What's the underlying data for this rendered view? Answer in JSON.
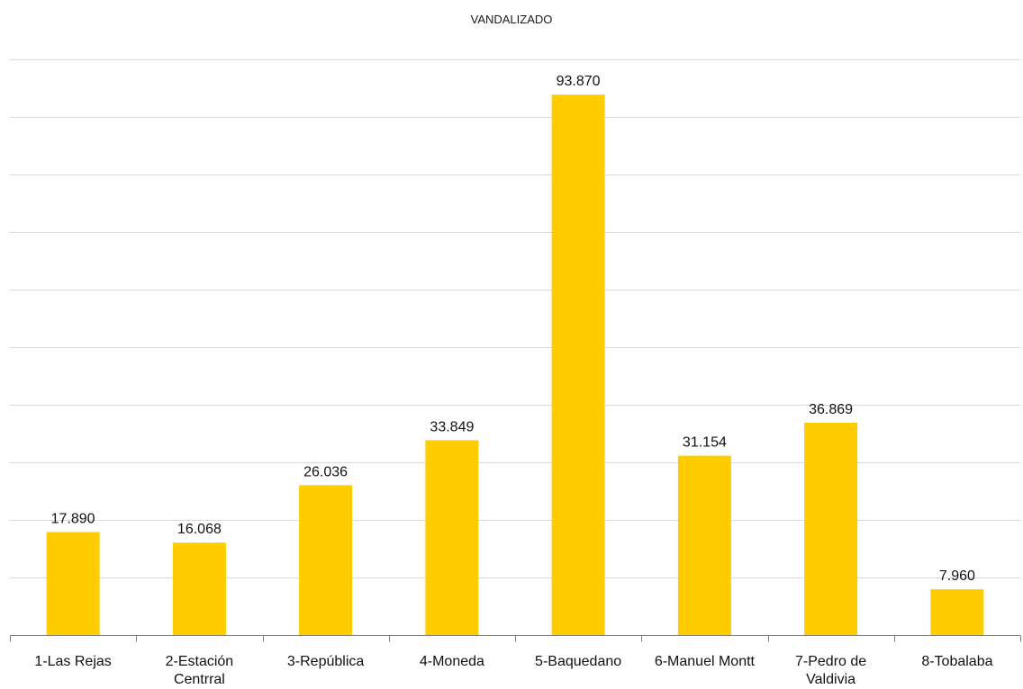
{
  "chart_data": {
    "type": "bar",
    "title": "VANDALIZADO",
    "xlabel": "",
    "ylabel": "",
    "categories": [
      "1-Las Rejas",
      "2-Estación Centrral",
      "3-República",
      "4-Moneda",
      "5-Baquedano",
      "6-Manuel Montt",
      "7-Pedro de Valdivia",
      "8-Tobalaba"
    ],
    "category_lines": [
      [
        "1-Las Rejas"
      ],
      [
        "2-Estación",
        "Centrral"
      ],
      [
        "3-República"
      ],
      [
        "4-Moneda"
      ],
      [
        "5-Baquedano"
      ],
      [
        "6-Manuel Montt"
      ],
      [
        "7-Pedro de",
        "Valdivia"
      ],
      [
        "8-Tobalaba"
      ]
    ],
    "values": [
      17890,
      16068,
      26036,
      33849,
      93870,
      31154,
      36869,
      7960
    ],
    "data_labels": [
      "17.890",
      "16.068",
      "26.036",
      "33.849",
      "93.870",
      "31.154",
      "36.869",
      "7.960"
    ],
    "ylim": [
      0,
      100000
    ],
    "y_gridline_step": 10000,
    "grid": true,
    "legend": "none",
    "colors": {
      "bar": "#FFCC00",
      "gridline": "#d9d9d9",
      "axis": "#7f7f7f",
      "text": "#111111"
    }
  }
}
